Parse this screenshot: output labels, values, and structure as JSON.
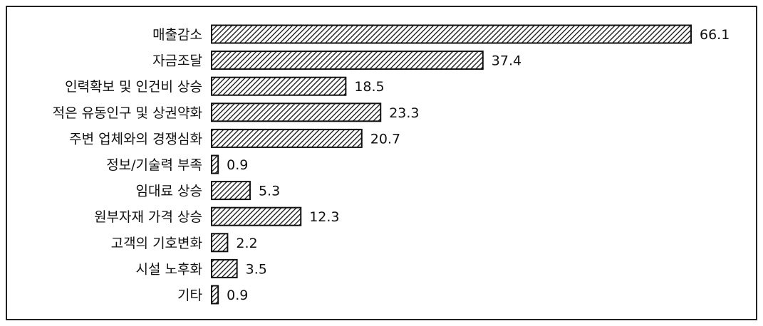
{
  "chart_data": {
    "type": "bar",
    "orientation": "horizontal",
    "title": "",
    "xlabel": "",
    "ylabel": "",
    "categories": [
      "매출감소",
      "자금조달",
      "인력확보 및 인건비 상승",
      "적은 유동인구 및 상권약화",
      "주변 업체와의 경쟁심화",
      "정보/기술력 부족",
      "임대료 상승",
      "원부자재 가격 상승",
      "고객의 기호변화",
      "시설 노후화",
      "기타"
    ],
    "values": [
      66.1,
      37.4,
      18.5,
      23.3,
      20.7,
      0.9,
      5.3,
      12.3,
      2.2,
      3.5,
      0.9
    ],
    "value_labels": [
      "66.1",
      "37.4",
      "18.5",
      "23.3",
      "20.7",
      "0.9",
      "5.3",
      "12.3",
      "2.2",
      "3.5",
      "0.9"
    ],
    "xlim": [
      0,
      66.1
    ],
    "grid": false,
    "legend": "none",
    "bar_fill": "diagonal-hatch",
    "colors": {
      "bar_stroke": "#111111",
      "hatch": "#111111",
      "bar_background": "#ffffff",
      "text": "#111111",
      "frame": "#222222"
    }
  }
}
